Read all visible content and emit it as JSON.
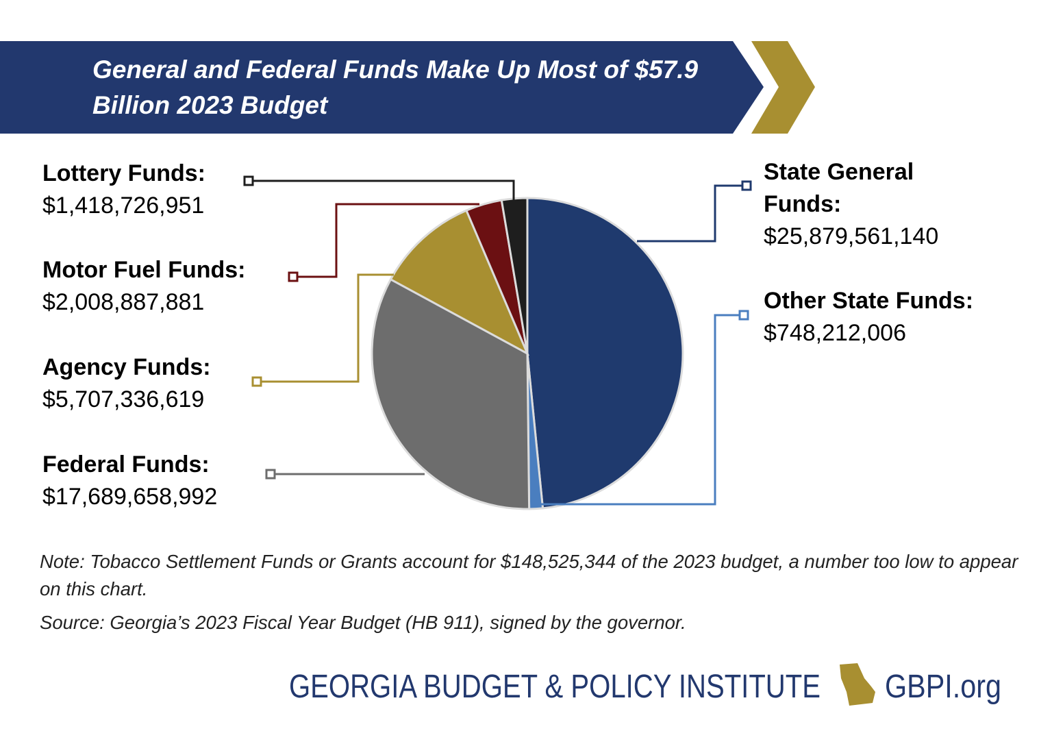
{
  "header": {
    "title": "General and Federal Funds Make Up Most of $57.9 Billion 2023 Budget"
  },
  "chart_data": {
    "type": "pie",
    "categories": [
      "State General Funds:",
      "Other State Funds:",
      "Federal Funds:",
      "Agency Funds:",
      "Motor Fuel Funds:",
      "Lottery Funds:"
    ],
    "values": [
      25879561140,
      748212006,
      17689658992,
      5707336619,
      2008887881,
      1418726951
    ],
    "value_labels": [
      "$25,879,561,140",
      "$748,212,006",
      "$17,689,658,992",
      "$5,707,336,619",
      "$2,008,887,881",
      "$1,418,726,951"
    ],
    "colors": [
      "#1f3a6e",
      "#4a7ebf",
      "#6d6d6d",
      "#a88f31",
      "#6b1012",
      "#1e1e1e"
    ]
  },
  "note": "Note: Tobacco Settlement Funds or Grants account for $148,525,344 of the 2023 budget, a number too low to appear on this chart.",
  "source": "Source: Georgia’s 2023 Fiscal Year Budget (HB 911), signed by the governor.",
  "footer": {
    "organization": "GEORGIA BUDGET & POLICY INSTITUTE",
    "website": "GBPI.org"
  }
}
